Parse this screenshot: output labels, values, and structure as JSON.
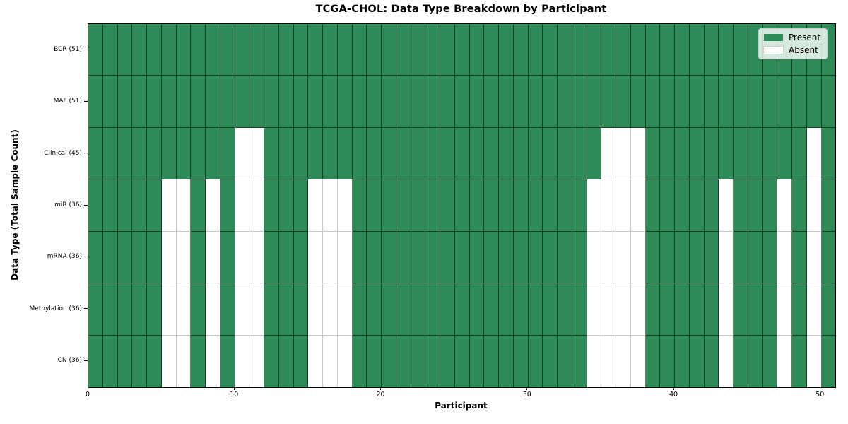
{
  "chart_data": {
    "type": "heatmap",
    "title": "TCGA-CHOL: Data Type Breakdown by Participant",
    "xlabel": "Participant",
    "ylabel": "Data Type (Total Sample Count)",
    "n_participants": 51,
    "xlim": [
      0,
      51
    ],
    "x_ticks": [
      0,
      10,
      20,
      30,
      40,
      50
    ],
    "grid": true,
    "legend_position": "upper right",
    "legend": [
      {
        "label": "Present",
        "color": "#2E8B57"
      },
      {
        "label": "Absent",
        "color": "#FFFFFF"
      }
    ],
    "rows": [
      {
        "label": "BCR (51)",
        "present_count": 51,
        "absent_participants": []
      },
      {
        "label": "MAF (51)",
        "present_count": 51,
        "absent_participants": []
      },
      {
        "label": "Clinical (45)",
        "present_count": 45,
        "absent_participants": [
          10,
          11,
          35,
          36,
          37,
          49
        ]
      },
      {
        "label": "miR (36)",
        "present_count": 36,
        "absent_participants": [
          5,
          6,
          8,
          10,
          11,
          15,
          16,
          17,
          34,
          35,
          36,
          37,
          43,
          47,
          49
        ]
      },
      {
        "label": "mRNA (36)",
        "present_count": 36,
        "absent_participants": [
          5,
          6,
          8,
          10,
          11,
          15,
          16,
          17,
          34,
          35,
          36,
          37,
          43,
          47,
          49
        ]
      },
      {
        "label": "Methylation (36)",
        "present_count": 36,
        "absent_participants": [
          5,
          6,
          8,
          10,
          11,
          15,
          16,
          17,
          34,
          35,
          36,
          37,
          43,
          47,
          49
        ]
      },
      {
        "label": "CN (36)",
        "present_count": 36,
        "absent_participants": [
          5,
          6,
          8,
          10,
          11,
          15,
          16,
          17,
          34,
          35,
          36,
          37,
          43,
          47,
          49
        ]
      }
    ]
  },
  "colors": {
    "present": "#2E8B57",
    "absent": "#FFFFFF",
    "grid_dark": "rgba(0,0,0,0.55)",
    "grid_light": "#c9c9c9",
    "axis_frame": "#000000",
    "background": "#FFFFFF"
  }
}
